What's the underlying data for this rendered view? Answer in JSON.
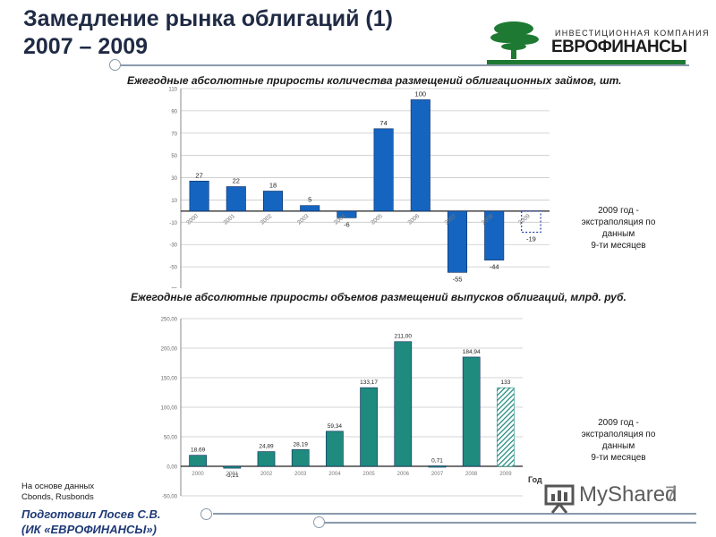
{
  "slide": {
    "title_line1": "Замедление рынка облигаций (1)",
    "title_line2": "2007 – 2009",
    "logo_sub": "ИНВЕСТИЦИОННАЯ КОМПАНИЯ",
    "logo_main": "ЕВРОФИНАНСЫ",
    "source_line1": "На основе данных",
    "source_line2": "Cbonds, Rusbonds",
    "author_line1": "Подготовил Лосев С.В.",
    "author_line2": "(ИК «ЕВРОФИНАНСЫ»)",
    "watermark_text": "MyShared",
    "page_number": "7",
    "colors": {
      "title": "#1f2a44",
      "logo_green": "#1e7a32",
      "blue_bar": "#1565c0",
      "teal_bar": "#1f8a7e"
    }
  },
  "chart_data": [
    {
      "type": "bar",
      "title": "Ежегодные абсолютные приросты количества размещений облигационных займов, шт.",
      "categories": [
        "2000",
        "2001",
        "2002",
        "2003",
        "2004",
        "2005",
        "2006",
        "2007",
        "2008",
        "2009"
      ],
      "values": [
        27,
        22,
        18,
        5,
        -6,
        74,
        100,
        -55,
        -44,
        -19
      ],
      "data_labels": [
        "27",
        "22",
        "18",
        "5",
        "-6",
        "74",
        "100",
        "-55",
        "-44",
        "-19"
      ],
      "extrapolated_index": 9,
      "y_ticks": [
        110,
        90,
        70,
        50,
        30,
        10,
        -10,
        -30,
        -50,
        -70
      ],
      "y_tick_labels": [
        "110",
        "90",
        "70",
        "50",
        "30",
        "10",
        "-10",
        "-30",
        "-50",
        "-70"
      ],
      "ylim": [
        -70,
        110
      ],
      "grid": true,
      "color": "#1565c0",
      "note": [
        "2009 год -",
        "экстраполяция по",
        "данным",
        "9-ти месяцев"
      ]
    },
    {
      "type": "bar",
      "title": "Ежегодные абсолютные приросты объемов размещений выпусков облигаций, млрд. руб.",
      "categories": [
        "2000",
        "2001",
        "2002",
        "2003",
        "2004",
        "2005",
        "2006",
        "2007",
        "2008",
        "2009"
      ],
      "values": [
        18.69,
        -3.21,
        24.89,
        28.19,
        59.34,
        133.17,
        211.0,
        0.71,
        184.94,
        133
      ],
      "data_labels": [
        "18,69",
        "-3,21",
        "24,89",
        "28,19",
        "59,34",
        "133,17",
        "211,00",
        "0,71",
        "184,94",
        "133"
      ],
      "extrapolated_index": 9,
      "x_axis_label": "Год",
      "y_ticks": [
        250,
        200,
        150,
        100,
        50,
        0,
        -50
      ],
      "y_tick_labels": [
        "250,00",
        "200,00",
        "150,00",
        "100,00",
        "50,00",
        "0,00",
        "-50,00"
      ],
      "ylim": [
        -50,
        250
      ],
      "grid": true,
      "color": "#1f8a7e",
      "note": [
        "2009 год -",
        "экстраполяция по",
        "данным",
        "9-ти месяцев"
      ]
    }
  ]
}
